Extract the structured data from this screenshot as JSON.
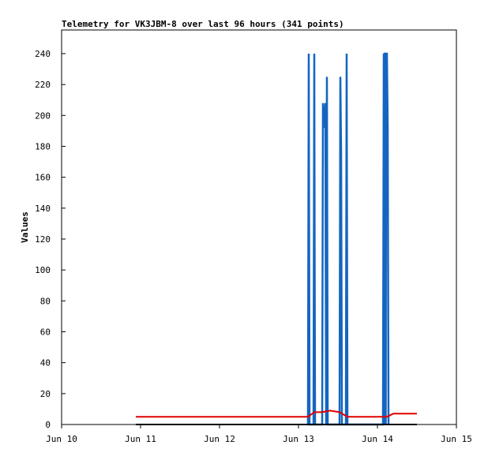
{
  "chart_data": {
    "type": "line",
    "title": "Telemetry for VK3JBM-8 over last 96 hours (341 points)",
    "y_label": "Values",
    "xlim": [
      10,
      15
    ],
    "xticks": [
      {
        "value": 10,
        "label": "Jun 10"
      },
      {
        "value": 11,
        "label": "Jun 11"
      },
      {
        "value": 12,
        "label": "Jun 12"
      },
      {
        "value": 13,
        "label": "Jun 13"
      },
      {
        "value": 14,
        "label": "Jun 14"
      },
      {
        "value": 15,
        "label": "Jun 15"
      }
    ],
    "ylim": [
      0,
      255.3
    ],
    "yticks": [
      0,
      20,
      40,
      60,
      80,
      100,
      120,
      140,
      160,
      180,
      200,
      220,
      240
    ],
    "series": [
      {
        "color": "#1565c0",
        "width": 2.5,
        "x": [
          13.12,
          13.13,
          13.14,
          13.19,
          13.2,
          13.205,
          13.21,
          13.3,
          13.31,
          13.32,
          13.33,
          13.34,
          13.35,
          13.36,
          13.37,
          13.52,
          13.53,
          13.54,
          13.55,
          13.6,
          13.61,
          13.62,
          14.07,
          14.08,
          14.085,
          14.09,
          14.1,
          14.105,
          14.11,
          14.12,
          14.13,
          14.14
        ],
        "values": [
          0,
          240,
          0,
          0,
          240,
          104,
          0,
          0,
          208,
          192,
          200,
          208,
          0,
          225,
          0,
          0,
          225,
          176,
          0,
          0,
          240,
          0,
          0,
          240,
          0,
          240,
          240,
          0,
          240,
          240,
          192,
          0
        ]
      },
      {
        "color": "#e00000",
        "width": 2,
        "x": [
          10.94,
          13.12,
          13.2,
          13.3,
          13.4,
          13.52,
          13.62,
          14.12,
          14.2,
          14.5
        ],
        "values": [
          5,
          5,
          8,
          8,
          9,
          8,
          5,
          5,
          7,
          7
        ]
      },
      {
        "color": "#000000",
        "width": 2,
        "x": [
          10.94,
          14.5
        ],
        "values": [
          0,
          0
        ]
      }
    ]
  }
}
